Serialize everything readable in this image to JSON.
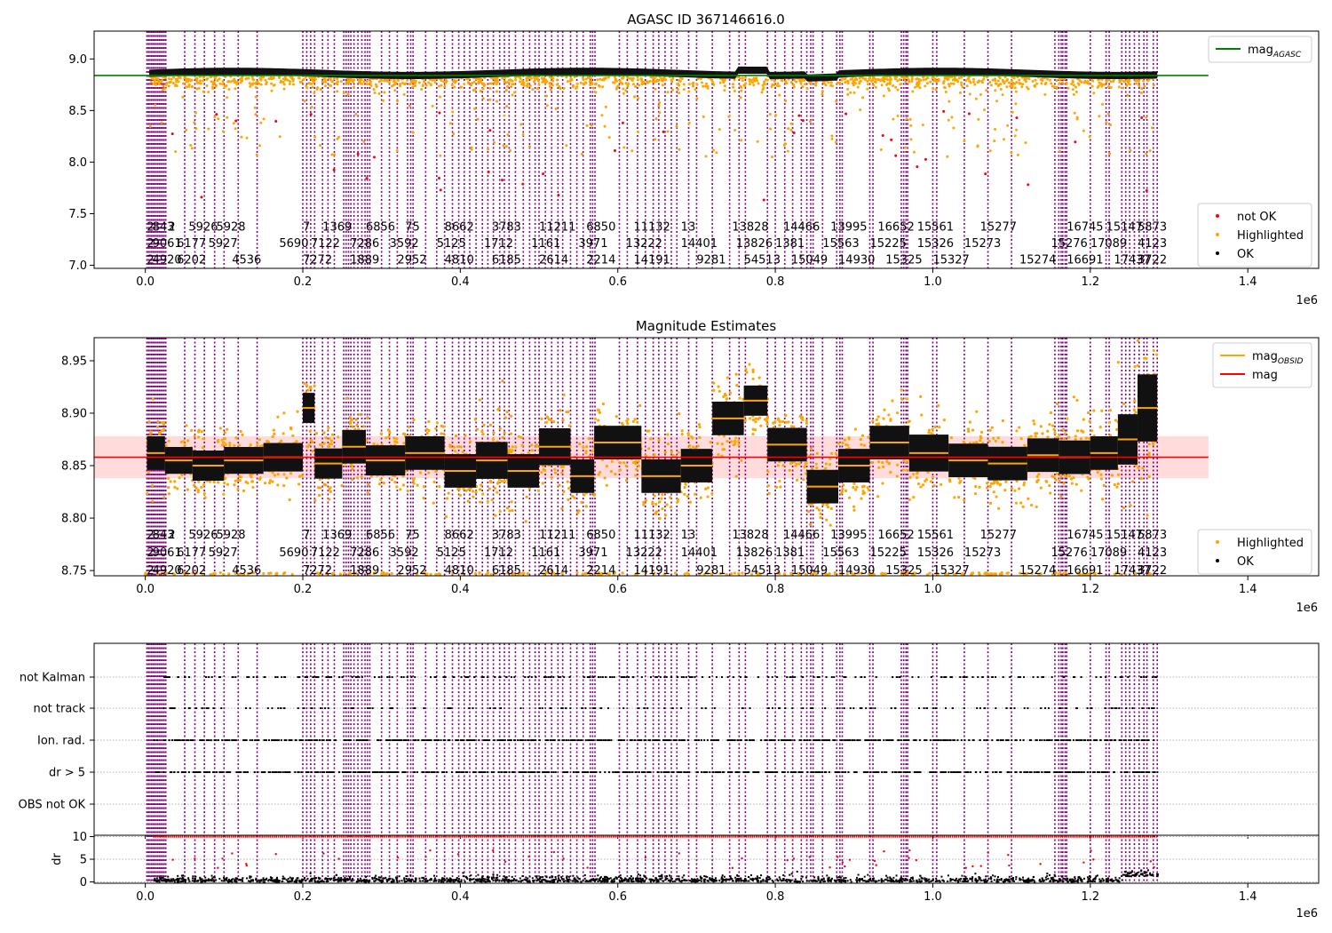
{
  "chart_data": [
    {
      "type": "scatter",
      "title": "AGASC ID 367146616.0",
      "xlabel": "",
      "ylabel": "",
      "x_offset_label": "1e6",
      "xlim": [
        -0.065,
        1.49
      ],
      "ylim": [
        6.97,
        9.27
      ],
      "xticks": [
        0.0,
        0.2,
        0.4,
        0.6,
        0.8,
        1.0,
        1.2,
        1.4
      ],
      "xtick_labels": [
        "0.0",
        "0.2",
        "0.4",
        "0.6",
        "0.8",
        "1.0",
        "1.2",
        "1.4"
      ],
      "yticks": [
        7.0,
        7.5,
        8.0,
        8.5,
        9.0
      ],
      "ytick_labels": [
        "7.0",
        "7.5",
        "8.0",
        "8.5",
        "9.0"
      ],
      "legend_top": {
        "placement": "top-right",
        "entries": [
          {
            "name": "mag",
            "sub": "AGASC",
            "color": "#008000",
            "kind": "line"
          }
        ]
      },
      "legend_bottom": {
        "placement": "lower-right",
        "entries": [
          {
            "name": "not OK",
            "color": "#ff0000",
            "kind": "marker"
          },
          {
            "name": "Highlighted",
            "color": "#ffa500",
            "kind": "marker"
          },
          {
            "name": "OK",
            "color": "#000000",
            "kind": "marker"
          }
        ]
      },
      "hlines": [
        {
          "y": 8.84,
          "xrange": [
            -0.065,
            1.35
          ],
          "color": "#008000"
        }
      ],
      "band": {
        "x_start": 0.005,
        "x_end": 1.285,
        "mid": 8.86,
        "half_height": 0.035
      },
      "obsid_label_rows": [
        7.38,
        7.22,
        7.06
      ],
      "obsid_labels": [
        {
          "x": 0.002,
          "row": 0,
          "text": "2"
        },
        {
          "x": 0.009,
          "row": 0,
          "text": "843"
        },
        {
          "x": 0.029,
          "row": 0,
          "text": "2"
        },
        {
          "x": 0.055,
          "row": 0,
          "text": "5926"
        },
        {
          "x": 0.09,
          "row": 0,
          "text": "5928"
        },
        {
          "x": 0.2,
          "row": 0,
          "text": "7"
        },
        {
          "x": 0.225,
          "row": 0,
          "text": "1369"
        },
        {
          "x": 0.28,
          "row": 0,
          "text": "6856"
        },
        {
          "x": 0.33,
          "row": 0,
          "text": "75"
        },
        {
          "x": 0.38,
          "row": 0,
          "text": "8662"
        },
        {
          "x": 0.44,
          "row": 0,
          "text": "3783"
        },
        {
          "x": 0.5,
          "row": 0,
          "text": "11211"
        },
        {
          "x": 0.56,
          "row": 0,
          "text": "6850"
        },
        {
          "x": 0.62,
          "row": 0,
          "text": "11132"
        },
        {
          "x": 0.68,
          "row": 0,
          "text": "13"
        },
        {
          "x": 0.745,
          "row": 0,
          "text": "13828"
        },
        {
          "x": 0.81,
          "row": 0,
          "text": "14466"
        },
        {
          "x": 0.87,
          "row": 0,
          "text": "13995"
        },
        {
          "x": 0.93,
          "row": 0,
          "text": "16652"
        },
        {
          "x": 0.98,
          "row": 0,
          "text": "15561"
        },
        {
          "x": 1.06,
          "row": 0,
          "text": "15277"
        },
        {
          "x": 1.17,
          "row": 0,
          "text": "16745"
        },
        {
          "x": 1.22,
          "row": 0,
          "text": "15147"
        },
        {
          "x": 1.26,
          "row": 0,
          "text": "5873"
        },
        {
          "x": 0.002,
          "row": 1,
          "text": "2"
        },
        {
          "x": 0.009,
          "row": 1,
          "text": "9061"
        },
        {
          "x": 0.04,
          "row": 1,
          "text": "6177"
        },
        {
          "x": 0.08,
          "row": 1,
          "text": "5927"
        },
        {
          "x": 0.17,
          "row": 1,
          "text": "5690"
        },
        {
          "x": 0.21,
          "row": 1,
          "text": "7122"
        },
        {
          "x": 0.26,
          "row": 1,
          "text": "7286"
        },
        {
          "x": 0.31,
          "row": 1,
          "text": "3592"
        },
        {
          "x": 0.37,
          "row": 1,
          "text": "5125"
        },
        {
          "x": 0.43,
          "row": 1,
          "text": "1712"
        },
        {
          "x": 0.49,
          "row": 1,
          "text": "1161"
        },
        {
          "x": 0.55,
          "row": 1,
          "text": "3971"
        },
        {
          "x": 0.61,
          "row": 1,
          "text": "13222"
        },
        {
          "x": 0.68,
          "row": 1,
          "text": "14401"
        },
        {
          "x": 0.75,
          "row": 1,
          "text": "13826"
        },
        {
          "x": 0.8,
          "row": 1,
          "text": "1381"
        },
        {
          "x": 0.86,
          "row": 1,
          "text": "15563"
        },
        {
          "x": 0.92,
          "row": 1,
          "text": "15225"
        },
        {
          "x": 0.98,
          "row": 1,
          "text": "15326"
        },
        {
          "x": 1.04,
          "row": 1,
          "text": "15273"
        },
        {
          "x": 1.15,
          "row": 1,
          "text": "15276"
        },
        {
          "x": 1.2,
          "row": 1,
          "text": "17089"
        },
        {
          "x": 1.26,
          "row": 1,
          "text": "4123"
        },
        {
          "x": 0.002,
          "row": 2,
          "text": "2"
        },
        {
          "x": 0.009,
          "row": 2,
          "text": "4920"
        },
        {
          "x": 0.04,
          "row": 2,
          "text": "6202"
        },
        {
          "x": 0.11,
          "row": 2,
          "text": "4536"
        },
        {
          "x": 0.2,
          "row": 2,
          "text": "7272"
        },
        {
          "x": 0.26,
          "row": 2,
          "text": "1889"
        },
        {
          "x": 0.32,
          "row": 2,
          "text": "2952"
        },
        {
          "x": 0.38,
          "row": 2,
          "text": "4810"
        },
        {
          "x": 0.44,
          "row": 2,
          "text": "6185"
        },
        {
          "x": 0.5,
          "row": 2,
          "text": "2614"
        },
        {
          "x": 0.56,
          "row": 2,
          "text": "2214"
        },
        {
          "x": 0.62,
          "row": 2,
          "text": "14191"
        },
        {
          "x": 0.7,
          "row": 2,
          "text": "9281"
        },
        {
          "x": 0.76,
          "row": 2,
          "text": "54513"
        },
        {
          "x": 0.82,
          "row": 2,
          "text": "15049"
        },
        {
          "x": 0.88,
          "row": 2,
          "text": "14930"
        },
        {
          "x": 0.94,
          "row": 2,
          "text": "15325"
        },
        {
          "x": 1.0,
          "row": 2,
          "text": "15327"
        },
        {
          "x": 1.11,
          "row": 2,
          "text": "15274"
        },
        {
          "x": 1.17,
          "row": 2,
          "text": "16691"
        },
        {
          "x": 1.23,
          "row": 2,
          "text": "17437"
        },
        {
          "x": 1.26,
          "row": 2,
          "text": "3722"
        }
      ]
    },
    {
      "type": "scatter",
      "title": "Magnitude Estimates",
      "xlabel": "",
      "ylabel": "",
      "x_offset_label": "1e6",
      "xlim": [
        -0.065,
        1.49
      ],
      "ylim": [
        8.745,
        8.972
      ],
      "xticks": [
        0.0,
        0.2,
        0.4,
        0.6,
        0.8,
        1.0,
        1.2,
        1.4
      ],
      "xtick_labels": [
        "0.0",
        "0.2",
        "0.4",
        "0.6",
        "0.8",
        "1.0",
        "1.2",
        "1.4"
      ],
      "yticks": [
        8.75,
        8.8,
        8.85,
        8.9,
        8.95
      ],
      "ytick_labels": [
        "8.75",
        "8.80",
        "8.85",
        "8.90",
        "8.95"
      ],
      "legend_top": {
        "placement": "top-right",
        "entries": [
          {
            "name": "mag",
            "sub": "OBSID",
            "color": "#ffa500",
            "kind": "line"
          },
          {
            "name": "mag",
            "sub": "",
            "color": "#ff0000",
            "kind": "line"
          }
        ]
      },
      "legend_bottom": {
        "placement": "lower-right",
        "entries": [
          {
            "name": "Highlighted",
            "color": "#ffa500",
            "kind": "marker"
          },
          {
            "name": "OK",
            "color": "#000000",
            "kind": "marker"
          }
        ]
      },
      "hlines": [
        {
          "y": 8.858,
          "xrange": [
            -0.065,
            1.35
          ],
          "color": "#ff0000"
        }
      ],
      "shaded_band": {
        "y0": 8.838,
        "y1": 8.878,
        "xrange": [
          -0.065,
          1.35
        ],
        "color": "#ffcccc"
      },
      "obsid_label_rows": [
        8.785,
        8.768,
        8.751
      ],
      "obsid_segments": [
        {
          "x0": 0.002,
          "x1": 0.025,
          "mag": 8.862,
          "half": 0.02
        },
        {
          "x0": 0.025,
          "x1": 0.06,
          "mag": 8.855,
          "half": 0.016
        },
        {
          "x0": 0.06,
          "x1": 0.1,
          "mag": 8.85,
          "half": 0.018
        },
        {
          "x0": 0.1,
          "x1": 0.15,
          "mag": 8.855,
          "half": 0.016
        },
        {
          "x0": 0.15,
          "x1": 0.2,
          "mag": 8.858,
          "half": 0.017
        },
        {
          "x0": 0.2,
          "x1": 0.215,
          "mag": 8.905,
          "half": 0.018
        },
        {
          "x0": 0.215,
          "x1": 0.25,
          "mag": 8.852,
          "half": 0.018
        },
        {
          "x0": 0.25,
          "x1": 0.28,
          "mag": 8.868,
          "half": 0.02
        },
        {
          "x0": 0.28,
          "x1": 0.33,
          "mag": 8.855,
          "half": 0.018
        },
        {
          "x0": 0.33,
          "x1": 0.38,
          "mag": 8.862,
          "half": 0.02
        },
        {
          "x0": 0.38,
          "x1": 0.42,
          "mag": 8.845,
          "half": 0.02
        },
        {
          "x0": 0.42,
          "x1": 0.46,
          "mag": 8.855,
          "half": 0.022
        },
        {
          "x0": 0.46,
          "x1": 0.5,
          "mag": 8.845,
          "half": 0.02
        },
        {
          "x0": 0.5,
          "x1": 0.54,
          "mag": 8.868,
          "half": 0.022
        },
        {
          "x0": 0.54,
          "x1": 0.57,
          "mag": 8.84,
          "half": 0.02
        },
        {
          "x0": 0.57,
          "x1": 0.63,
          "mag": 8.872,
          "half": 0.02
        },
        {
          "x0": 0.63,
          "x1": 0.68,
          "mag": 8.84,
          "half": 0.02
        },
        {
          "x0": 0.68,
          "x1": 0.72,
          "mag": 8.85,
          "half": 0.02
        },
        {
          "x0": 0.72,
          "x1": 0.76,
          "mag": 8.895,
          "half": 0.02
        },
        {
          "x0": 0.76,
          "x1": 0.79,
          "mag": 8.912,
          "half": 0.018
        },
        {
          "x0": 0.79,
          "x1": 0.84,
          "mag": 8.87,
          "half": 0.02
        },
        {
          "x0": 0.84,
          "x1": 0.88,
          "mag": 8.83,
          "half": 0.02
        },
        {
          "x0": 0.88,
          "x1": 0.92,
          "mag": 8.85,
          "half": 0.02
        },
        {
          "x0": 0.92,
          "x1": 0.97,
          "mag": 8.872,
          "half": 0.02
        },
        {
          "x0": 0.97,
          "x1": 1.02,
          "mag": 8.862,
          "half": 0.022
        },
        {
          "x0": 1.02,
          "x1": 1.07,
          "mag": 8.855,
          "half": 0.02
        },
        {
          "x0": 1.07,
          "x1": 1.12,
          "mag": 8.852,
          "half": 0.02
        },
        {
          "x0": 1.12,
          "x1": 1.16,
          "mag": 8.86,
          "half": 0.02
        },
        {
          "x0": 1.16,
          "x1": 1.2,
          "mag": 8.858,
          "half": 0.02
        },
        {
          "x0": 1.2,
          "x1": 1.235,
          "mag": 8.862,
          "half": 0.02
        },
        {
          "x0": 1.235,
          "x1": 1.26,
          "mag": 8.875,
          "half": 0.03
        },
        {
          "x0": 1.26,
          "x1": 1.285,
          "mag": 8.905,
          "half": 0.04
        }
      ]
    },
    {
      "type": "scatter",
      "title": "",
      "xlabel": "",
      "ylabel": "",
      "x_offset_label": "1e6",
      "xlim": [
        -0.065,
        1.49
      ],
      "xticks": [
        0.0,
        0.2,
        0.4,
        0.6,
        0.8,
        1.0,
        1.2,
        1.4
      ],
      "xtick_labels": [
        "0.0",
        "0.2",
        "0.4",
        "0.6",
        "0.8",
        "1.0",
        "1.2",
        "1.4"
      ],
      "flag_rows": [
        "not Kalman",
        "not track",
        "Ion. rad.",
        "dr > 5",
        "OBS not OK"
      ],
      "grid": "y-dotted"
    },
    {
      "type": "scatter",
      "title": "",
      "xlabel": "",
      "ylabel": "dr",
      "x_offset_label": "1e6",
      "xlim": [
        -0.065,
        1.49
      ],
      "ylim": [
        -0.3,
        10.3
      ],
      "yticks": [
        0,
        5,
        10
      ],
      "ytick_labels": [
        "0",
        "5",
        "10"
      ],
      "hlines": [
        {
          "y": 10,
          "color": "#ff0000",
          "note": "clipped values"
        }
      ],
      "grid": "y-dotted"
    }
  ],
  "obsid_lines_x": [
    0.002,
    0.004,
    0.006,
    0.008,
    0.01,
    0.012,
    0.014,
    0.016,
    0.018,
    0.02,
    0.022,
    0.024,
    0.026,
    0.05,
    0.063,
    0.075,
    0.088,
    0.1,
    0.118,
    0.142,
    0.2,
    0.205,
    0.21,
    0.215,
    0.225,
    0.232,
    0.24,
    0.252,
    0.255,
    0.258,
    0.261,
    0.265,
    0.27,
    0.275,
    0.279,
    0.282,
    0.285,
    0.3,
    0.31,
    0.32,
    0.333,
    0.337,
    0.34,
    0.356,
    0.37,
    0.38,
    0.39,
    0.398,
    0.405,
    0.412,
    0.42,
    0.428,
    0.435,
    0.442,
    0.45,
    0.456,
    0.462,
    0.47,
    0.48,
    0.488,
    0.495,
    0.5,
    0.508,
    0.516,
    0.524,
    0.53,
    0.54,
    0.548,
    0.556,
    0.565,
    0.568,
    0.571,
    0.602,
    0.612,
    0.625,
    0.635,
    0.645,
    0.652,
    0.66,
    0.668,
    0.675,
    0.69,
    0.7,
    0.72,
    0.742,
    0.754,
    0.762,
    0.79,
    0.8,
    0.812,
    0.822,
    0.833,
    0.84,
    0.845,
    0.848,
    0.86,
    0.878,
    0.882,
    0.885,
    0.92,
    0.924,
    0.96,
    0.963,
    0.966,
    0.968,
    1.0,
    1.005,
    1.04,
    1.07,
    1.1,
    1.155,
    1.16,
    1.163,
    1.165,
    1.168,
    1.17,
    1.2,
    1.22,
    1.224,
    1.24,
    1.245,
    1.25,
    1.256,
    1.262,
    1.268,
    1.272,
    1.28,
    1.285
  ],
  "obsid_line_color": "#800080"
}
